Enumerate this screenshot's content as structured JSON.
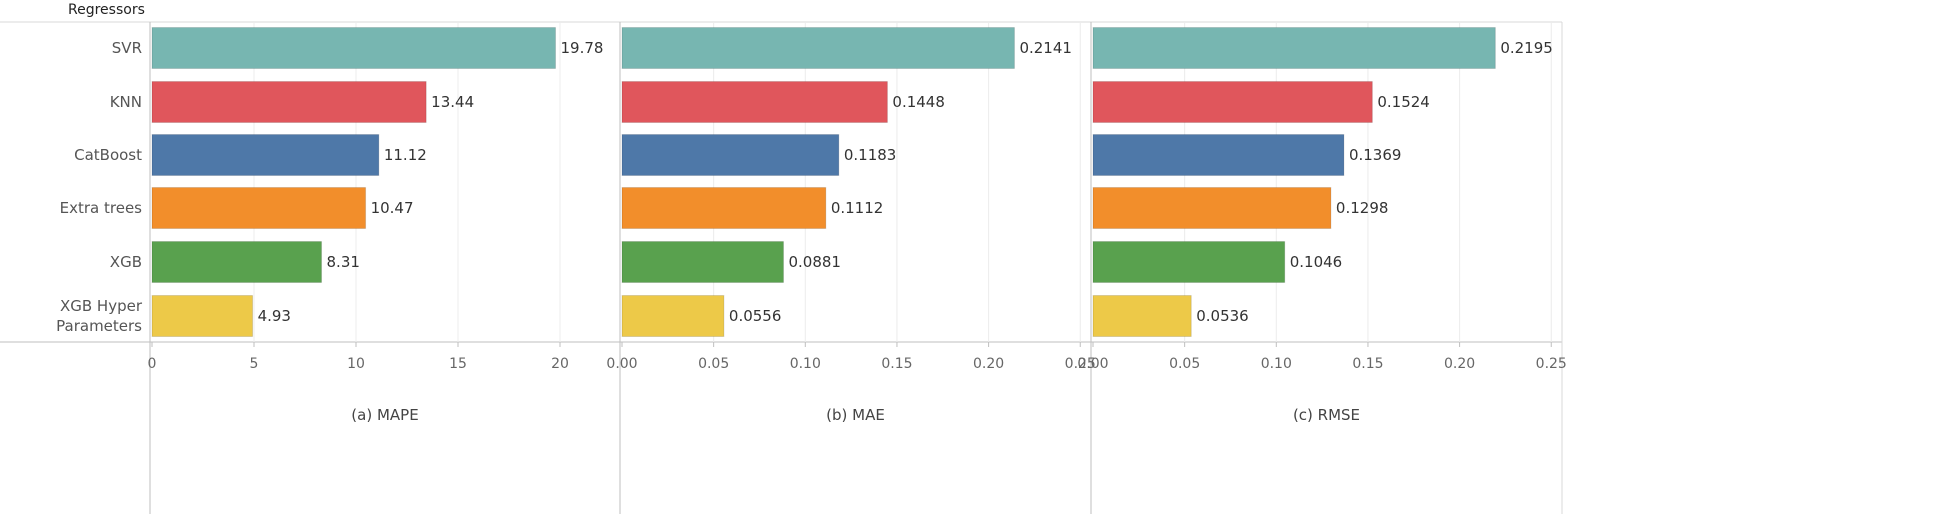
{
  "row_header": "Regressors",
  "categories": [
    "SVR",
    "KNN",
    "CatBoost",
    "Extra trees",
    "XGB",
    "XGB Hyper\nParameters"
  ],
  "colors": [
    "#77b6b1",
    "#e0565c",
    "#4e78a8",
    "#f28e2b",
    "#59a14e",
    "#edc948"
  ],
  "chart_data": [
    {
      "type": "bar",
      "orientation": "horizontal",
      "title": "",
      "xlabel": "(a) MAPE",
      "ylabel": "Regressors",
      "categories": [
        "SVR",
        "KNN",
        "CatBoost",
        "Extra trees",
        "XGB",
        "XGB Hyper Parameters"
      ],
      "values": [
        19.78,
        13.44,
        11.12,
        10.47,
        8.31,
        4.93
      ],
      "value_labels": [
        "19.78",
        "13.44",
        "11.12",
        "10.47",
        "8.31",
        "4.93"
      ],
      "xlim": [
        0,
        23
      ],
      "ticks": [
        0,
        5,
        10,
        15,
        20
      ],
      "tick_labels": [
        "0",
        "5",
        "10",
        "15",
        "20"
      ],
      "grid": true
    },
    {
      "type": "bar",
      "orientation": "horizontal",
      "title": "",
      "xlabel": "(b) MAE",
      "ylabel": "Regressors",
      "categories": [
        "SVR",
        "KNN",
        "CatBoost",
        "Extra trees",
        "XGB",
        "XGB Hyper Parameters"
      ],
      "values": [
        0.2141,
        0.1448,
        0.1183,
        0.1112,
        0.0881,
        0.0556
      ],
      "value_labels": [
        "0.2141",
        "0.1448",
        "0.1183",
        "0.1112",
        "0.0881",
        "0.0556"
      ],
      "xlim": [
        0,
        0.255
      ],
      "ticks": [
        0,
        0.05,
        0.1,
        0.15,
        0.2,
        0.25
      ],
      "tick_labels": [
        "0.00",
        "0.05",
        "0.10",
        "0.15",
        "0.20",
        "0.25"
      ],
      "grid": true
    },
    {
      "type": "bar",
      "orientation": "horizontal",
      "title": "",
      "xlabel": "(c) RMSE",
      "ylabel": "Regressors",
      "categories": [
        "SVR",
        "KNN",
        "CatBoost",
        "Extra trees",
        "XGB",
        "XGB Hyper Parameters"
      ],
      "values": [
        0.2195,
        0.1524,
        0.1369,
        0.1298,
        0.1046,
        0.0536
      ],
      "value_labels": [
        "0.2195",
        "0.1524",
        "0.1369",
        "0.1298",
        "0.1046",
        "0.0536"
      ],
      "xlim": [
        0,
        0.255
      ],
      "ticks": [
        0,
        0.05,
        0.1,
        0.15,
        0.2,
        0.25
      ],
      "tick_labels": [
        "0.00",
        "0.05",
        "0.10",
        "0.15",
        "0.20",
        "0.25"
      ],
      "grid": true
    }
  ]
}
